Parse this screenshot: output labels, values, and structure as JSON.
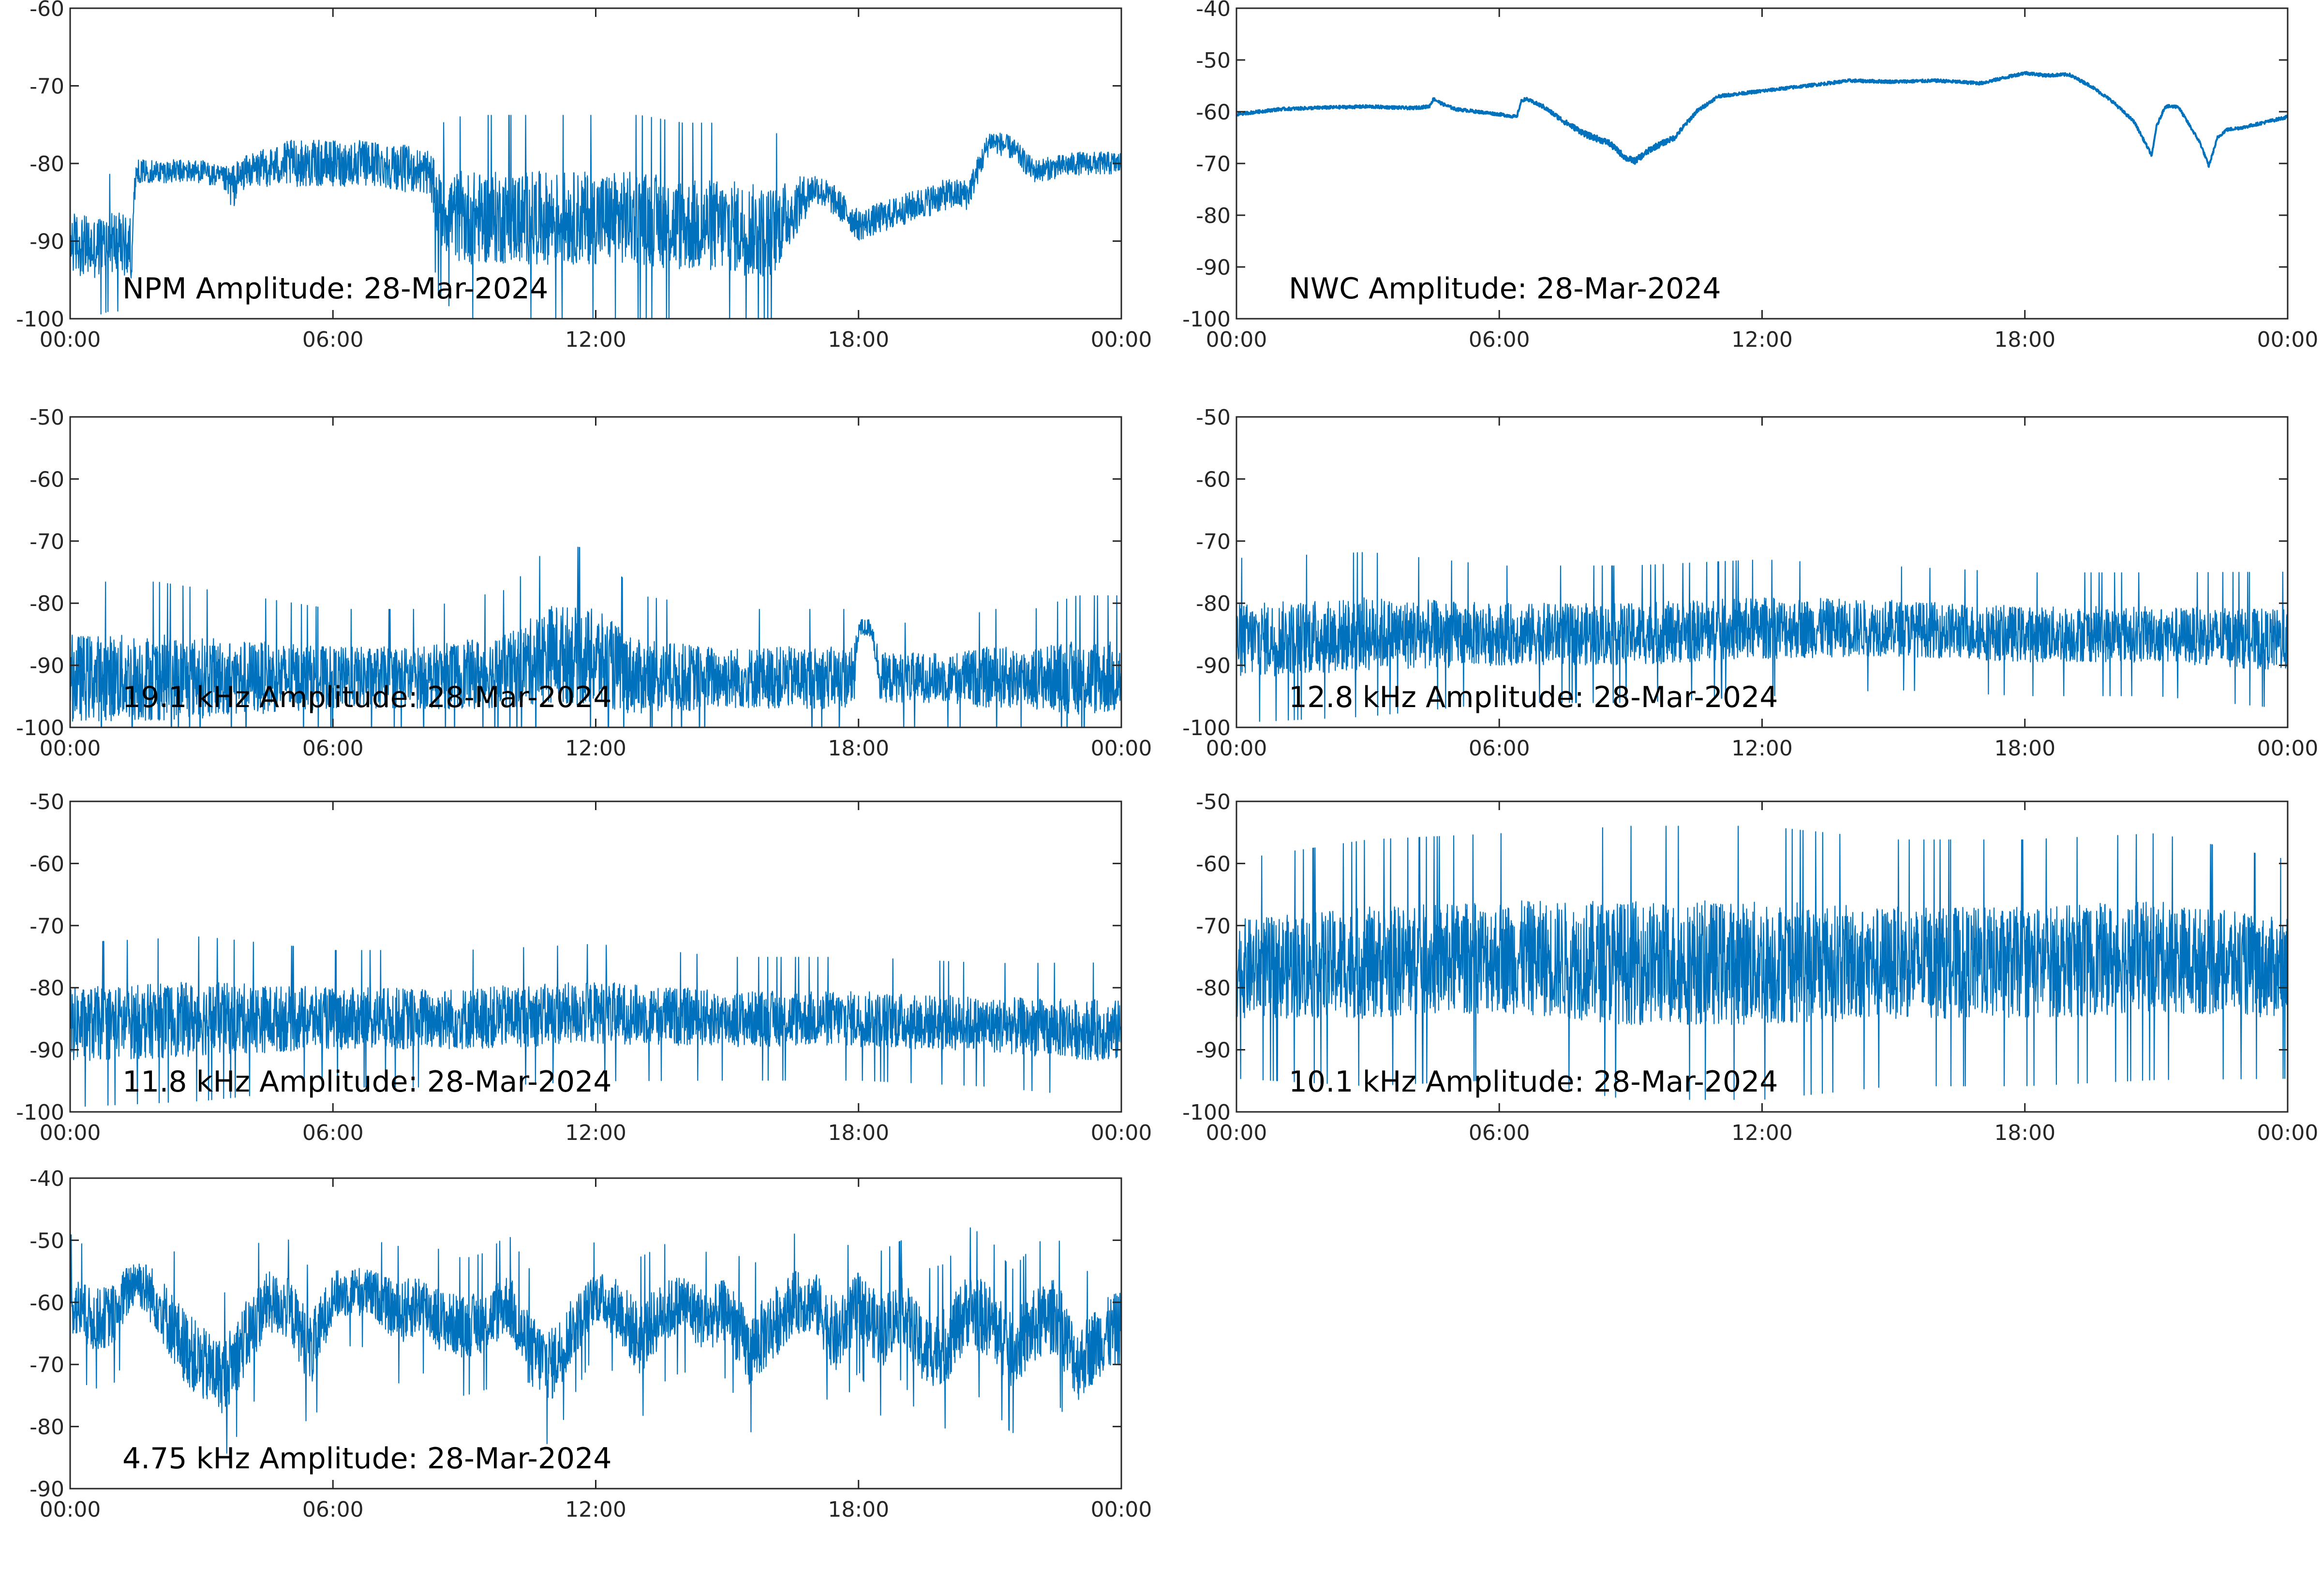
{
  "figure": {
    "line_color": "#0072BD",
    "axis_color": "#262626",
    "background": "#ffffff"
  },
  "chart_data": [
    {
      "type": "line",
      "title": "NPM Amplitude: 28-Mar-2024",
      "xlabel": "",
      "ylabel": "",
      "x_unit": "hours",
      "xlim": [
        0,
        24
      ],
      "ylim": [
        -100,
        -60
      ],
      "xticks": [
        0,
        6,
        12,
        18,
        24
      ],
      "xtick_labels": [
        "00:00",
        "06:00",
        "12:00",
        "18:00",
        "00:00"
      ],
      "yticks": [
        -100,
        -90,
        -80,
        -70,
        -60
      ],
      "ytick_labels": [
        "-100",
        "-90",
        "-80",
        "-70",
        "-60"
      ],
      "grid": false,
      "series": [
        {
          "x": [
            0.0,
            0.5,
            1.0,
            1.4,
            1.5,
            2.0,
            3.0,
            3.5,
            3.7,
            4.0,
            5.0,
            6.0,
            7.0,
            8.0,
            8.2,
            8.4,
            9.0,
            10.0,
            11.0,
            12.0,
            13.0,
            14.0,
            15.0,
            16.0,
            16.5,
            17.0,
            17.5,
            18.0,
            19.0,
            20.0,
            20.5,
            21.0,
            21.5,
            22.0,
            23.0,
            24.0
          ],
          "y": [
            -90.0,
            -91.0,
            -90.0,
            -91.0,
            -81.0,
            -81.0,
            -81.0,
            -82.0,
            -83.0,
            -81.0,
            -80.0,
            -80.0,
            -80.0,
            -81.0,
            -81.0,
            -86.0,
            -87.0,
            -87.0,
            -87.0,
            -87.0,
            -87.0,
            -88.0,
            -88.0,
            -89.0,
            -86.0,
            -83.0,
            -85.0,
            -88.0,
            -86.0,
            -84.0,
            -84.0,
            -77.0,
            -78.0,
            -81.0,
            -80.0,
            -80.0
          ],
          "amp": [
            4.0,
            4.0,
            4.0,
            4.0,
            1.5,
            1.5,
            1.5,
            1.5,
            3.0,
            2.0,
            3.0,
            3.0,
            3.0,
            3.0,
            3.0,
            5.0,
            6.0,
            6.0,
            6.0,
            6.0,
            6.0,
            6.0,
            6.0,
            6.0,
            4.0,
            2.0,
            2.0,
            2.0,
            2.0,
            2.0,
            2.0,
            1.5,
            1.5,
            1.5,
            1.5,
            1.5
          ]
        }
      ]
    },
    {
      "type": "line",
      "title": "NWC Amplitude: 28-Mar-2024",
      "xlabel": "",
      "ylabel": "",
      "x_unit": "hours",
      "xlim": [
        0,
        24
      ],
      "ylim": [
        -100,
        -40
      ],
      "xticks": [
        0,
        6,
        12,
        18,
        24
      ],
      "xtick_labels": [
        "00:00",
        "06:00",
        "12:00",
        "18:00",
        "00:00"
      ],
      "yticks": [
        -100,
        -90,
        -80,
        -70,
        -60,
        -50,
        -40
      ],
      "ytick_labels": [
        "-100",
        "-90",
        "-80",
        "-70",
        "-60",
        "-50",
        "-40"
      ],
      "grid": false,
      "series": [
        {
          "x": [
            0.0,
            1.0,
            2.0,
            3.0,
            4.0,
            4.4,
            4.5,
            4.7,
            5.0,
            6.0,
            6.4,
            6.5,
            6.6,
            7.0,
            7.5,
            8.0,
            8.5,
            8.9,
            9.1,
            9.5,
            10.0,
            10.5,
            11.0,
            11.5,
            12.0,
            13.0,
            14.0,
            15.0,
            16.0,
            17.0,
            18.0,
            18.5,
            19.0,
            19.5,
            20.0,
            20.5,
            20.9,
            21.0,
            21.2,
            21.5,
            22.0,
            22.2,
            22.4,
            22.6,
            23.0,
            24.0
          ],
          "y": [
            -60.5,
            -59.5,
            -59.2,
            -59.0,
            -59.3,
            -59.0,
            -57.5,
            -58.5,
            -59.5,
            -60.5,
            -61.0,
            -58.0,
            -57.5,
            -59.0,
            -62.0,
            -64.5,
            -66.0,
            -69.0,
            -69.5,
            -67.0,
            -65.0,
            -60.0,
            -57.0,
            -56.5,
            -56.0,
            -55.0,
            -54.0,
            -54.2,
            -54.0,
            -54.5,
            -52.5,
            -53.0,
            -52.8,
            -55.0,
            -58.0,
            -62.0,
            -68.5,
            -63.0,
            -59.0,
            -59.0,
            -66.0,
            -70.5,
            -65.0,
            -63.5,
            -63.0,
            -61.0
          ],
          "amp": [
            0.3,
            0.3,
            0.3,
            0.3,
            0.3,
            0.3,
            0.3,
            0.3,
            0.3,
            0.3,
            0.3,
            0.3,
            0.3,
            0.4,
            0.5,
            0.6,
            0.6,
            0.6,
            0.6,
            0.6,
            0.5,
            0.4,
            0.3,
            0.3,
            0.3,
            0.3,
            0.3,
            0.3,
            0.3,
            0.3,
            0.3,
            0.3,
            0.3,
            0.3,
            0.3,
            0.3,
            0.3,
            0.3,
            0.3,
            0.3,
            0.3,
            0.3,
            0.3,
            0.3,
            0.3,
            0.3
          ]
        }
      ]
    },
    {
      "type": "line",
      "title": "19.1 kHz Amplitude: 28-Mar-2024",
      "xlabel": "",
      "ylabel": "",
      "x_unit": "hours",
      "xlim": [
        0,
        24
      ],
      "ylim": [
        -100,
        -50
      ],
      "xticks": [
        0,
        6,
        12,
        18,
        24
      ],
      "xtick_labels": [
        "00:00",
        "06:00",
        "12:00",
        "18:00",
        "00:00"
      ],
      "yticks": [
        -100,
        -90,
        -80,
        -70,
        -60,
        -50
      ],
      "ytick_labels": [
        "-100",
        "-90",
        "-80",
        "-70",
        "-60",
        "-50"
      ],
      "grid": false,
      "series": [
        {
          "x": [
            0.0,
            2.0,
            4.0,
            6.0,
            8.0,
            10.0,
            11.0,
            12.0,
            13.0,
            15.0,
            17.0,
            17.9,
            18.0,
            18.3,
            18.5,
            20.0,
            21.0,
            22.0,
            23.0,
            24.0
          ],
          "y": [
            -92.0,
            -92.0,
            -92.0,
            -92.0,
            -92.0,
            -91.0,
            -88.0,
            -89.0,
            -92.0,
            -92.0,
            -92.0,
            -92.0,
            -84.0,
            -84.0,
            -92.0,
            -92.0,
            -92.0,
            -92.0,
            -92.0,
            -92.0
          ],
          "amp": [
            7.0,
            7.0,
            6.0,
            5.0,
            5.0,
            6.0,
            8.0,
            8.0,
            6.0,
            5.0,
            5.0,
            5.0,
            1.5,
            1.5,
            4.0,
            4.0,
            5.0,
            5.0,
            6.0,
            6.0
          ]
        }
      ]
    },
    {
      "type": "line",
      "title": "12.8 kHz Amplitude: 28-Mar-2024",
      "xlabel": "",
      "ylabel": "",
      "x_unit": "hours",
      "xlim": [
        0,
        24
      ],
      "ylim": [
        -100,
        -50
      ],
      "xticks": [
        0,
        6,
        12,
        18,
        24
      ],
      "xtick_labels": [
        "00:00",
        "06:00",
        "12:00",
        "18:00",
        "00:00"
      ],
      "yticks": [
        -100,
        -90,
        -80,
        -70,
        -60,
        -50
      ],
      "ytick_labels": [
        "-100",
        "-90",
        "-80",
        "-70",
        "-60",
        "-50"
      ],
      "grid": false,
      "series": [
        {
          "x": [
            0.0,
            3.0,
            6.0,
            9.0,
            12.0,
            15.0,
            18.0,
            21.0,
            24.0
          ],
          "y": [
            -86.0,
            -85.0,
            -85.0,
            -85.0,
            -84.0,
            -84.0,
            -85.0,
            -85.0,
            -86.0
          ],
          "amp": [
            6.0,
            6.0,
            5.0,
            5.0,
            5.0,
            4.5,
            4.5,
            4.5,
            5.0
          ]
        }
      ]
    },
    {
      "type": "line",
      "title": "11.8 kHz Amplitude: 28-Mar-2024",
      "xlabel": "",
      "ylabel": "",
      "x_unit": "hours",
      "xlim": [
        0,
        24
      ],
      "ylim": [
        -100,
        -50
      ],
      "xticks": [
        0,
        6,
        12,
        18,
        24
      ],
      "xtick_labels": [
        "00:00",
        "06:00",
        "12:00",
        "18:00",
        "00:00"
      ],
      "yticks": [
        -100,
        -90,
        -80,
        -70,
        -60,
        -50
      ],
      "ytick_labels": [
        "-100",
        "-90",
        "-80",
        "-70",
        "-60",
        "-50"
      ],
      "grid": false,
      "series": [
        {
          "x": [
            0.0,
            3.0,
            6.0,
            9.0,
            12.0,
            15.0,
            18.0,
            21.0,
            24.0
          ],
          "y": [
            -86.0,
            -85.0,
            -85.0,
            -85.0,
            -84.0,
            -85.0,
            -85.0,
            -86.0,
            -87.0
          ],
          "amp": [
            6.0,
            6.0,
            5.0,
            5.0,
            5.0,
            4.5,
            4.5,
            4.5,
            5.0
          ]
        }
      ]
    },
    {
      "type": "line",
      "title": "10.1 kHz Amplitude: 28-Mar-2024",
      "xlabel": "",
      "ylabel": "",
      "x_unit": "hours",
      "xlim": [
        0,
        24
      ],
      "ylim": [
        -100,
        -50
      ],
      "xticks": [
        0,
        6,
        12,
        18,
        24
      ],
      "xtick_labels": [
        "00:00",
        "06:00",
        "12:00",
        "18:00",
        "00:00"
      ],
      "yticks": [
        -100,
        -90,
        -80,
        -70,
        -60,
        -50
      ],
      "ytick_labels": [
        "-100",
        "-90",
        "-80",
        "-70",
        "-60",
        "-50"
      ],
      "grid": false,
      "series": [
        {
          "x": [
            0.0,
            3.0,
            6.0,
            9.0,
            12.0,
            15.0,
            18.0,
            21.0,
            24.0
          ],
          "y": [
            -77.0,
            -76.0,
            -75.0,
            -76.0,
            -76.0,
            -76.0,
            -76.0,
            -75.0,
            -77.0
          ],
          "amp": [
            8.0,
            9.0,
            9.0,
            10.0,
            10.0,
            9.0,
            9.0,
            9.0,
            8.0
          ]
        }
      ]
    },
    {
      "type": "line",
      "title": "4.75 kHz Amplitude: 28-Mar-2024",
      "xlabel": "",
      "ylabel": "",
      "x_unit": "hours",
      "xlim": [
        0,
        24
      ],
      "ylim": [
        -90,
        -40
      ],
      "xticks": [
        0,
        6,
        12,
        18,
        24
      ],
      "xtick_labels": [
        "00:00",
        "06:00",
        "12:00",
        "18:00",
        "00:00"
      ],
      "yticks": [
        -90,
        -80,
        -70,
        -60,
        -50,
        -40
      ],
      "ytick_labels": [
        "-90",
        "-80",
        "-70",
        "-60",
        "-50",
        "-40"
      ],
      "grid": false,
      "series": [
        {
          "x": [
            0.0,
            0.5,
            1.0,
            1.5,
            2.0,
            2.5,
            3.0,
            3.5,
            4.0,
            4.5,
            5.0,
            5.5,
            6.0,
            6.5,
            7.0,
            7.5,
            8.0,
            8.5,
            9.0,
            9.5,
            10.0,
            10.5,
            11.0,
            11.5,
            12.0,
            12.5,
            13.0,
            13.5,
            14.0,
            14.5,
            15.0,
            15.5,
            16.0,
            16.5,
            17.0,
            17.5,
            18.0,
            18.5,
            19.0,
            19.5,
            20.0,
            20.5,
            21.0,
            21.5,
            22.0,
            22.5,
            23.0,
            23.5,
            24.0
          ],
          "y": [
            -60.0,
            -63.0,
            -62.0,
            -56.0,
            -60.0,
            -66.0,
            -70.0,
            -72.0,
            -66.0,
            -60.0,
            -61.0,
            -68.0,
            -59.0,
            -58.0,
            -59.0,
            -62.0,
            -60.0,
            -63.0,
            -64.0,
            -63.0,
            -60.0,
            -68.0,
            -70.0,
            -64.0,
            -59.0,
            -61.0,
            -66.0,
            -62.0,
            -60.0,
            -63.0,
            -61.0,
            -68.0,
            -64.0,
            -60.0,
            -60.0,
            -66.0,
            -60.0,
            -65.0,
            -61.0,
            -68.0,
            -67.0,
            -61.0,
            -63.0,
            -68.0,
            -64.0,
            -62.0,
            -70.0,
            -66.0,
            -64.0
          ],
          "amp": [
            5.0,
            5.0,
            5.0,
            4.0,
            5.0,
            6.0,
            6.0,
            6.0,
            6.0,
            5.0,
            5.0,
            6.0,
            4.0,
            4.0,
            4.0,
            5.0,
            5.0,
            5.0,
            5.0,
            5.0,
            5.0,
            6.0,
            6.0,
            5.0,
            4.0,
            5.0,
            6.0,
            5.0,
            5.0,
            5.0,
            5.0,
            6.0,
            6.0,
            5.0,
            5.0,
            6.0,
            5.0,
            6.0,
            5.0,
            6.0,
            6.0,
            6.0,
            6.0,
            6.0,
            6.0,
            6.0,
            6.0,
            6.0,
            6.0
          ]
        }
      ]
    }
  ]
}
